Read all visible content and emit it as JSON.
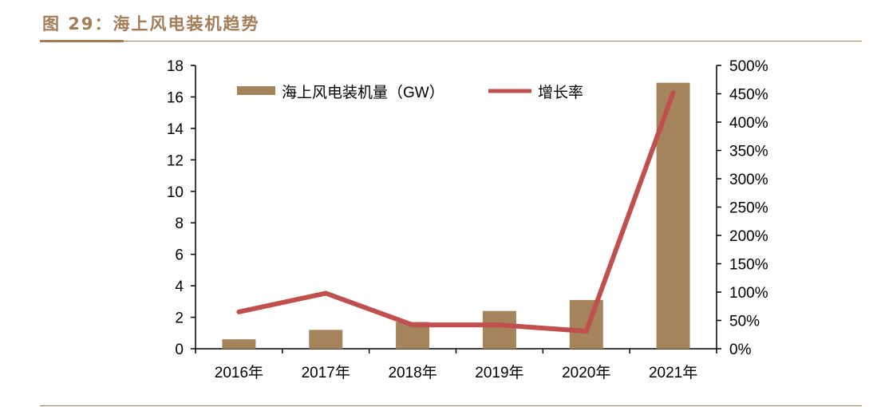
{
  "title": "图 29：海上风电装机趋势",
  "chart_data": {
    "type": "bar+line",
    "title": "",
    "categories": [
      "2016年",
      "2017年",
      "2018年",
      "2019年",
      "2020年",
      "2021年"
    ],
    "series": [
      {
        "name": "海上风电装机量（GW）",
        "type": "bar",
        "axis": "left",
        "color": "#a5845b",
        "values": [
          0.6,
          1.2,
          1.7,
          2.4,
          3.1,
          16.9
        ]
      },
      {
        "name": "增长率",
        "type": "line",
        "axis": "right",
        "color": "#c0504d",
        "values": [
          65,
          98,
          42,
          42,
          31,
          452
        ]
      }
    ],
    "ylim_left": [
      0,
      18
    ],
    "yticks_left": [
      "0",
      "2",
      "4",
      "6",
      "8",
      "10",
      "12",
      "14",
      "16",
      "18"
    ],
    "ylim_right": [
      0,
      500
    ],
    "yticks_right": [
      "0%",
      "50%",
      "100%",
      "150%",
      "200%",
      "250%",
      "300%",
      "350%",
      "400%",
      "450%",
      "500%"
    ],
    "legend": "top",
    "grid": false
  }
}
